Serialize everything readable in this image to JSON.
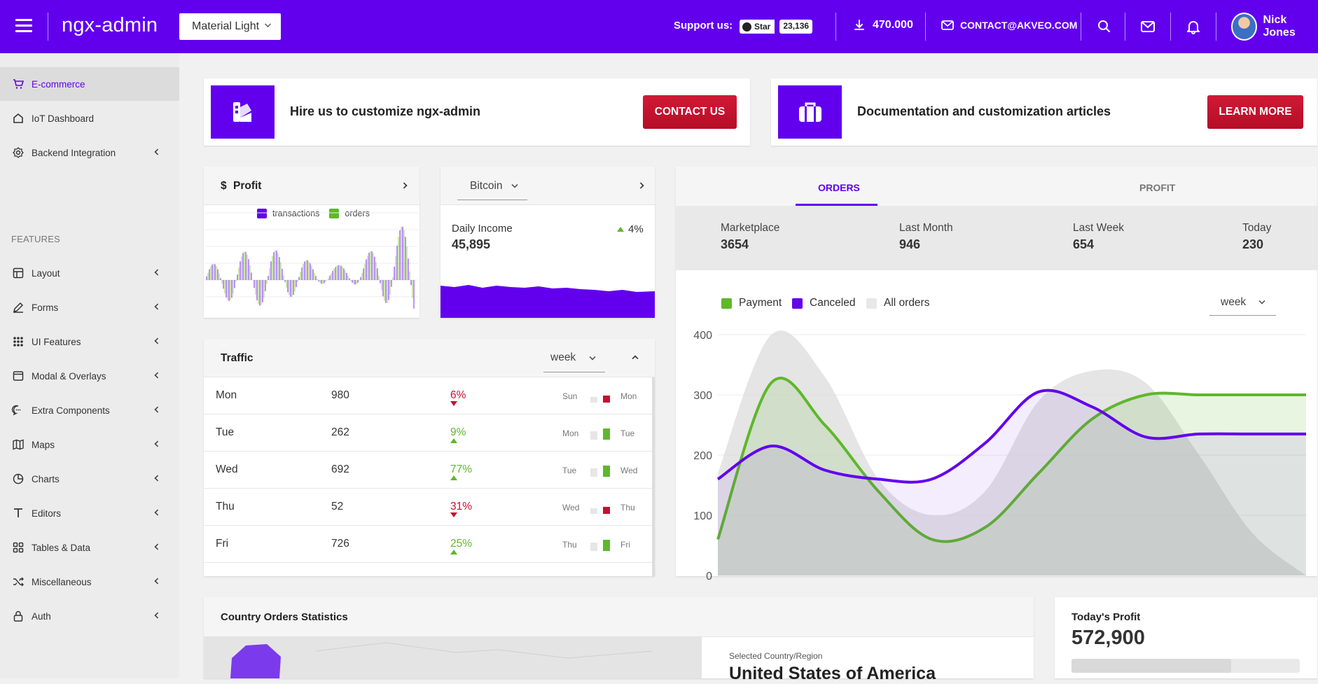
{
  "header": {
    "logo": "ngx-admin",
    "theme": "Material Light",
    "support_label": "Support us:",
    "star_label": "Star",
    "star_count": "23,136",
    "downloads": "470.000",
    "contact_email": "CONTACT@AKVEO.COM",
    "user_name": "Nick Jones"
  },
  "sidebar": {
    "group_label": "FEATURES",
    "items": [
      {
        "label": "E-commerce",
        "icon": "shopping-cart-icon"
      },
      {
        "label": "IoT Dashboard",
        "icon": "home-icon"
      },
      {
        "label": "Backend Integration",
        "icon": "settings-icon"
      },
      {
        "label": "Layout",
        "icon": "layout-icon"
      },
      {
        "label": "Forms",
        "icon": "edit-icon"
      },
      {
        "label": "UI Features",
        "icon": "grid-icon"
      },
      {
        "label": "Modal & Overlays",
        "icon": "browser-icon"
      },
      {
        "label": "Extra Components",
        "icon": "message-icon"
      },
      {
        "label": "Maps",
        "icon": "map-icon"
      },
      {
        "label": "Charts",
        "icon": "pie-chart-icon"
      },
      {
        "label": "Editors",
        "icon": "text-icon"
      },
      {
        "label": "Tables & Data",
        "icon": "grid-small-icon"
      },
      {
        "label": "Miscellaneous",
        "icon": "shuffle-icon"
      },
      {
        "label": "Auth",
        "icon": "lock-icon"
      }
    ]
  },
  "promo": {
    "hire_text": "Hire us to customize ngx-admin",
    "contact_btn": "CONTACT US",
    "docs_text": "Documentation and customization articles",
    "learn_btn": "LEARN MORE"
  },
  "profit_card": {
    "currency": "$",
    "title": "Profit",
    "legend": [
      "transactions",
      "orders"
    ]
  },
  "bitcoin_card": {
    "currency": "Bitcoin",
    "income_label": "Daily Income",
    "income_value": "45,895",
    "change": "4%"
  },
  "traffic": {
    "title": "Traffic",
    "period": "week",
    "rows": [
      {
        "day": "Mon",
        "value": "980",
        "delta": "6%",
        "dir": "down",
        "prev": "Sun",
        "cur": "Mon"
      },
      {
        "day": "Tue",
        "value": "262",
        "delta": "9%",
        "dir": "up",
        "prev": "Mon",
        "cur": "Tue"
      },
      {
        "day": "Wed",
        "value": "692",
        "delta": "77%",
        "dir": "up",
        "prev": "Tue",
        "cur": "Wed"
      },
      {
        "day": "Thu",
        "value": "52",
        "delta": "31%",
        "dir": "down",
        "prev": "Wed",
        "cur": "Thu"
      },
      {
        "day": "Fri",
        "value": "726",
        "delta": "25%",
        "dir": "up",
        "prev": "Thu",
        "cur": "Fri"
      }
    ]
  },
  "orders_card": {
    "tabs": [
      "ORDERS",
      "PROFIT"
    ],
    "stats": [
      {
        "label": "Marketplace",
        "value": "3654"
      },
      {
        "label": "Last Month",
        "value": "946"
      },
      {
        "label": "Last Week",
        "value": "654"
      },
      {
        "label": "Today",
        "value": "230"
      }
    ],
    "period": "week",
    "legend": [
      {
        "name": "Payment",
        "color": "#5fb72b"
      },
      {
        "name": "Canceled",
        "color": "#6200ee"
      },
      {
        "name": "All orders",
        "color": "#e8e8e8"
      }
    ]
  },
  "chart_data": {
    "type": "area",
    "x": [
      0,
      1,
      2,
      3,
      4,
      5,
      6,
      7,
      8,
      9,
      10,
      11
    ],
    "series": [
      {
        "name": "All orders",
        "values": [
          170,
          400,
          330,
          160,
          100,
          140,
          290,
          340,
          320,
          200,
          70,
          0
        ]
      },
      {
        "name": "Payment",
        "values": [
          60,
          320,
          250,
          140,
          60,
          80,
          170,
          260,
          300,
          300,
          300,
          300
        ]
      },
      {
        "name": "Canceled",
        "values": [
          160,
          215,
          175,
          160,
          160,
          220,
          305,
          280,
          230,
          235,
          235,
          235
        ]
      }
    ],
    "ylim": [
      0,
      400
    ],
    "yticks": [
      0,
      100,
      200,
      300,
      400
    ],
    "grid": true,
    "legend": "top-left"
  },
  "country_card": {
    "title": "Country Orders Statistics",
    "selected_label": "Selected Country/Region",
    "selected_value": "United States of America"
  },
  "today_profit": {
    "label": "Today's Profit",
    "value": "572,900",
    "progress": 0.7
  }
}
